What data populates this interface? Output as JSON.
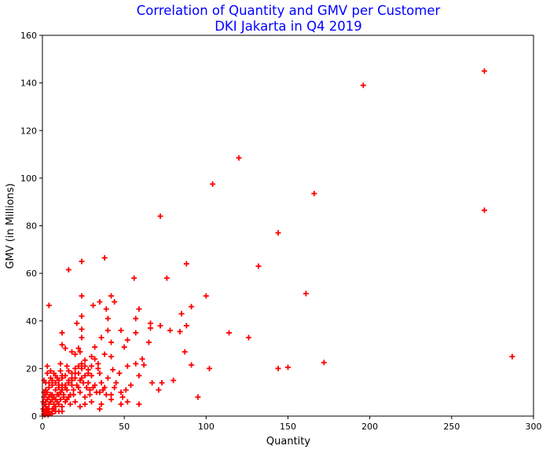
{
  "chart_data": {
    "type": "scatter",
    "title": "Correlation of Quantity and GMV per Customer",
    "subtitle": "DKI Jakarta in Q4 2019",
    "xlabel": "Quantity",
    "ylabel": "GMV (in Millions)",
    "xlim": [
      0,
      300
    ],
    "ylim": [
      0,
      160
    ],
    "xticks": [
      0,
      50,
      100,
      150,
      200,
      250,
      300
    ],
    "yticks": [
      0,
      20,
      40,
      60,
      80,
      100,
      120,
      140,
      160
    ],
    "grid": false,
    "marker": "+",
    "color": "#ff0000",
    "title_color": "#0000ff",
    "points": [
      [
        270,
        145
      ],
      [
        196,
        139
      ],
      [
        120,
        108.5
      ],
      [
        104,
        97.5
      ],
      [
        166,
        93.5
      ],
      [
        270,
        86.5
      ],
      [
        72,
        84
      ],
      [
        144,
        77
      ],
      [
        38,
        66.5
      ],
      [
        24,
        65
      ],
      [
        88,
        64
      ],
      [
        132,
        63
      ],
      [
        16,
        61.5
      ],
      [
        56,
        58
      ],
      [
        76,
        58
      ],
      [
        161,
        51.5
      ],
      [
        100,
        50.5
      ],
      [
        24,
        50.5
      ],
      [
        42,
        50.5
      ],
      [
        4,
        46.5
      ],
      [
        31,
        46.5
      ],
      [
        91,
        46
      ],
      [
        44,
        48
      ],
      [
        35,
        48
      ],
      [
        39,
        45
      ],
      [
        59,
        45
      ],
      [
        85,
        43
      ],
      [
        24,
        42
      ],
      [
        40,
        41
      ],
      [
        57,
        41
      ],
      [
        21,
        39
      ],
      [
        66,
        39
      ],
      [
        72,
        38
      ],
      [
        88,
        38
      ],
      [
        66,
        37
      ],
      [
        48,
        36
      ],
      [
        78,
        36
      ],
      [
        24,
        36.5
      ],
      [
        40,
        36
      ],
      [
        57,
        35
      ],
      [
        114,
        35
      ],
      [
        12,
        35
      ],
      [
        84,
        35.5
      ],
      [
        126,
        33
      ],
      [
        24,
        33
      ],
      [
        36,
        33
      ],
      [
        52,
        32
      ],
      [
        42,
        31
      ],
      [
        65,
        31
      ],
      [
        12,
        30
      ],
      [
        14,
        28.5
      ],
      [
        32,
        29
      ],
      [
        22,
        28.5
      ],
      [
        50,
        29
      ],
      [
        23,
        27
      ],
      [
        18,
        27
      ],
      [
        20,
        26
      ],
      [
        38,
        26
      ],
      [
        42,
        25
      ],
      [
        30,
        25
      ],
      [
        287,
        25
      ],
      [
        87,
        27
      ],
      [
        32,
        24
      ],
      [
        26,
        23.5
      ],
      [
        61,
        24
      ],
      [
        62,
        21.5
      ],
      [
        57,
        22
      ],
      [
        91,
        21.5
      ],
      [
        172,
        22.5
      ],
      [
        102,
        20
      ],
      [
        144,
        20
      ],
      [
        150,
        20.5
      ],
      [
        3,
        21
      ],
      [
        11,
        22
      ],
      [
        15,
        21
      ],
      [
        22,
        21
      ],
      [
        24,
        20
      ],
      [
        28,
        19.5
      ],
      [
        34,
        20
      ],
      [
        43,
        19.5
      ],
      [
        47,
        18
      ],
      [
        52,
        21
      ],
      [
        59,
        17
      ],
      [
        35,
        18
      ],
      [
        30,
        17
      ],
      [
        20,
        18
      ],
      [
        24,
        16
      ],
      [
        26,
        17
      ],
      [
        18,
        16
      ],
      [
        40,
        16
      ],
      [
        12,
        17
      ],
      [
        8,
        17
      ],
      [
        5,
        16
      ],
      [
        36,
        14
      ],
      [
        45,
        14
      ],
      [
        54,
        13
      ],
      [
        67,
        14
      ],
      [
        73,
        14
      ],
      [
        80,
        15
      ],
      [
        71,
        11
      ],
      [
        95,
        8
      ],
      [
        59,
        5
      ],
      [
        48,
        10
      ],
      [
        51,
        11
      ],
      [
        44,
        12
      ],
      [
        38,
        12
      ],
      [
        32,
        13
      ],
      [
        28,
        14
      ],
      [
        22,
        12
      ],
      [
        18,
        13
      ],
      [
        15,
        11
      ],
      [
        12,
        13
      ],
      [
        10,
        12
      ],
      [
        8,
        11
      ],
      [
        6,
        13
      ],
      [
        4,
        12
      ],
      [
        2,
        11
      ],
      [
        5,
        9
      ],
      [
        7,
        8
      ],
      [
        9,
        9
      ],
      [
        11,
        10
      ],
      [
        13,
        9
      ],
      [
        16,
        8
      ],
      [
        19,
        9
      ],
      [
        23,
        10
      ],
      [
        26,
        8
      ],
      [
        29,
        9
      ],
      [
        35,
        10
      ],
      [
        42,
        9
      ],
      [
        49,
        8
      ],
      [
        52,
        6
      ],
      [
        48,
        5
      ],
      [
        42,
        7
      ],
      [
        36,
        5
      ],
      [
        35,
        3
      ],
      [
        30,
        6
      ],
      [
        26,
        5
      ],
      [
        23,
        4
      ],
      [
        20,
        6
      ],
      [
        17,
        5
      ],
      [
        14,
        6
      ],
      [
        12,
        4
      ],
      [
        10,
        5
      ],
      [
        8,
        4
      ],
      [
        6,
        3
      ],
      [
        4,
        5
      ],
      [
        3,
        3
      ],
      [
        2,
        4
      ],
      [
        1,
        2
      ],
      [
        2,
        1
      ],
      [
        3,
        1.5
      ],
      [
        4,
        2
      ],
      [
        5,
        1
      ],
      [
        1,
        5
      ],
      [
        2,
        6
      ],
      [
        3,
        7
      ],
      [
        1,
        8
      ],
      [
        2,
        9
      ],
      [
        1,
        10
      ],
      [
        3,
        10
      ],
      [
        5,
        6
      ],
      [
        7,
        5
      ],
      [
        9,
        6
      ],
      [
        11,
        7
      ],
      [
        13,
        8
      ],
      [
        15,
        7
      ],
      [
        17,
        9
      ],
      [
        19,
        11
      ],
      [
        21,
        13
      ],
      [
        23,
        15
      ],
      [
        25,
        14
      ],
      [
        27,
        12
      ],
      [
        29,
        11
      ],
      [
        31,
        12
      ],
      [
        33,
        10
      ],
      [
        37,
        11
      ],
      [
        39,
        9
      ],
      [
        24,
        22
      ],
      [
        20,
        20
      ],
      [
        16,
        19
      ],
      [
        14,
        17
      ],
      [
        10,
        15
      ],
      [
        12,
        16
      ],
      [
        18,
        15
      ],
      [
        14,
        13
      ],
      [
        16,
        14
      ],
      [
        6,
        7
      ],
      [
        8,
        7
      ],
      [
        4,
        8
      ],
      [
        6,
        9
      ],
      [
        10,
        9
      ],
      [
        12,
        11
      ],
      [
        28,
        18
      ],
      [
        30,
        21
      ],
      [
        34,
        22
      ],
      [
        26,
        21
      ],
      [
        22,
        18
      ],
      [
        20,
        16
      ],
      [
        18,
        18
      ],
      [
        16,
        15
      ],
      [
        14,
        12
      ],
      [
        10,
        13
      ],
      [
        8,
        14
      ],
      [
        6,
        15
      ],
      [
        4,
        14
      ],
      [
        2,
        14
      ],
      [
        7,
        18
      ],
      [
        9,
        16
      ],
      [
        11,
        19
      ],
      [
        3,
        18
      ],
      [
        5,
        19
      ],
      [
        1,
        15
      ],
      [
        0.5,
        3
      ],
      [
        0.5,
        6
      ],
      [
        1.5,
        0.5
      ],
      [
        2.5,
        2.5
      ],
      [
        0.8,
        0.8
      ],
      [
        3.5,
        0.5
      ],
      [
        6,
        1
      ],
      [
        8,
        2
      ],
      [
        10,
        2
      ],
      [
        12,
        2
      ],
      [
        4,
        3
      ],
      [
        7,
        3
      ]
    ]
  }
}
